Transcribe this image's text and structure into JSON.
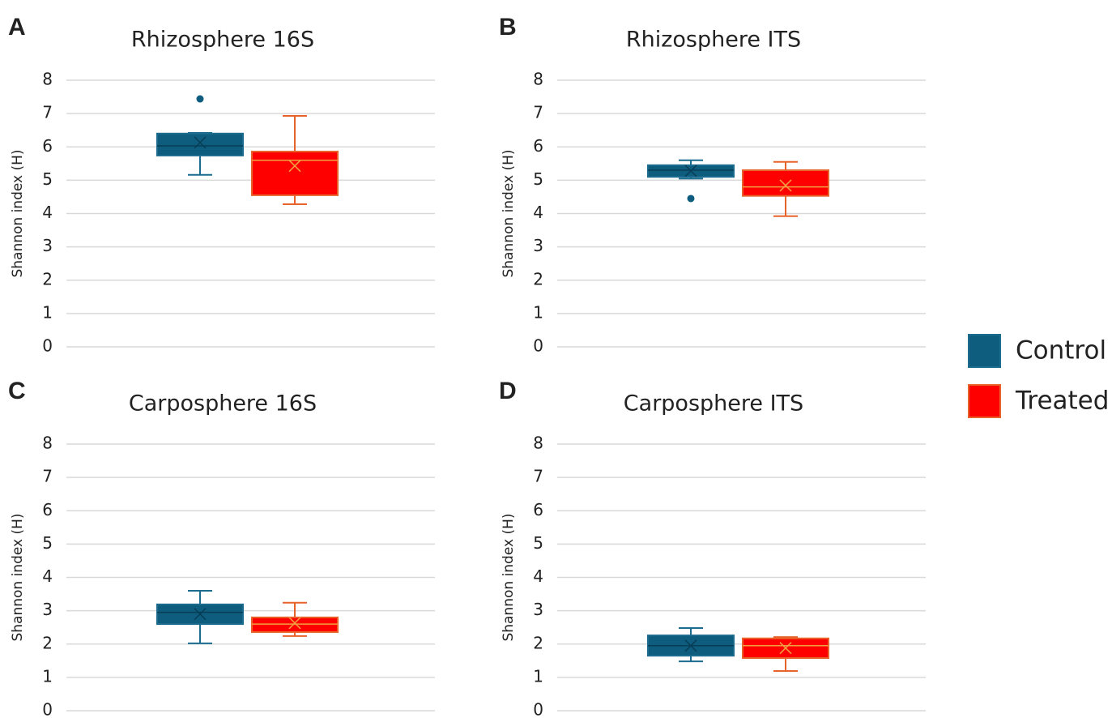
{
  "chart_data": [
    {
      "type": "box",
      "label": "A",
      "title": "Rhizosphere 16S",
      "y_label": "Shannon index (H)",
      "ylim": [
        0,
        8
      ],
      "yticks": [
        0,
        1,
        2,
        3,
        4,
        5,
        6,
        7,
        8
      ],
      "grid": true,
      "series": [
        {
          "name": "Control",
          "color": "#0e5c7e",
          "min": 5.16,
          "q1": 5.74,
          "median": 6.03,
          "q3": 6.4,
          "max": 6.42,
          "mean": 6.13,
          "outliers": [
            7.44
          ]
        },
        {
          "name": "Treated",
          "color": "#ff0000",
          "min": 4.28,
          "q1": 4.55,
          "median": 5.6,
          "q3": 5.86,
          "max": 6.93,
          "mean": 5.43,
          "outliers": []
        }
      ]
    },
    {
      "type": "box",
      "label": "B",
      "title": "Rhizosphere ITS",
      "y_label": "Shannon index (H)",
      "ylim": [
        0,
        8
      ],
      "yticks": [
        0,
        1,
        2,
        3,
        4,
        5,
        6,
        7,
        8
      ],
      "grid": true,
      "series": [
        {
          "color": "#0e5c7e",
          "min": 5.05,
          "q1": 5.1,
          "median": 5.3,
          "q3": 5.45,
          "max": 5.6,
          "mean": 5.28,
          "outliers": [
            4.45
          ]
        },
        {
          "color": "#ff0000",
          "min": 3.92,
          "q1": 4.53,
          "median": 4.8,
          "q3": 5.3,
          "max": 5.55,
          "mean": 4.84,
          "outliers": []
        }
      ]
    },
    {
      "type": "box",
      "label": "C",
      "title": "Carposphere 16S",
      "y_label": "Shannon index (H)",
      "ylim": [
        0,
        8
      ],
      "yticks": [
        0,
        1,
        2,
        3,
        4,
        5,
        6,
        7,
        8
      ],
      "grid": true,
      "series": [
        {
          "color": "#0e5c7e",
          "min": 2.02,
          "q1": 2.6,
          "median": 2.95,
          "q3": 3.19,
          "max": 3.6,
          "mean": 2.9,
          "outliers": []
        },
        {
          "color": "#ff0000",
          "min": 2.24,
          "q1": 2.36,
          "median": 2.6,
          "q3": 2.8,
          "max": 3.24,
          "mean": 2.63,
          "outliers": []
        }
      ]
    },
    {
      "type": "box",
      "label": "D",
      "title": "Carposphere ITS",
      "y_label": "Shannon index (H)",
      "ylim": [
        0,
        8
      ],
      "yticks": [
        0,
        1,
        2,
        3,
        4,
        5,
        6,
        7,
        8
      ],
      "grid": true,
      "series": [
        {
          "color": "#0e5c7e",
          "min": 1.48,
          "q1": 1.65,
          "median": 1.95,
          "q3": 2.26,
          "max": 2.48,
          "mean": 1.95,
          "outliers": []
        },
        {
          "color": "#ff0000",
          "min": 1.19,
          "q1": 1.58,
          "median": 1.95,
          "q3": 2.17,
          "max": 2.21,
          "mean": 1.88,
          "outliers": []
        }
      ]
    }
  ]
}
